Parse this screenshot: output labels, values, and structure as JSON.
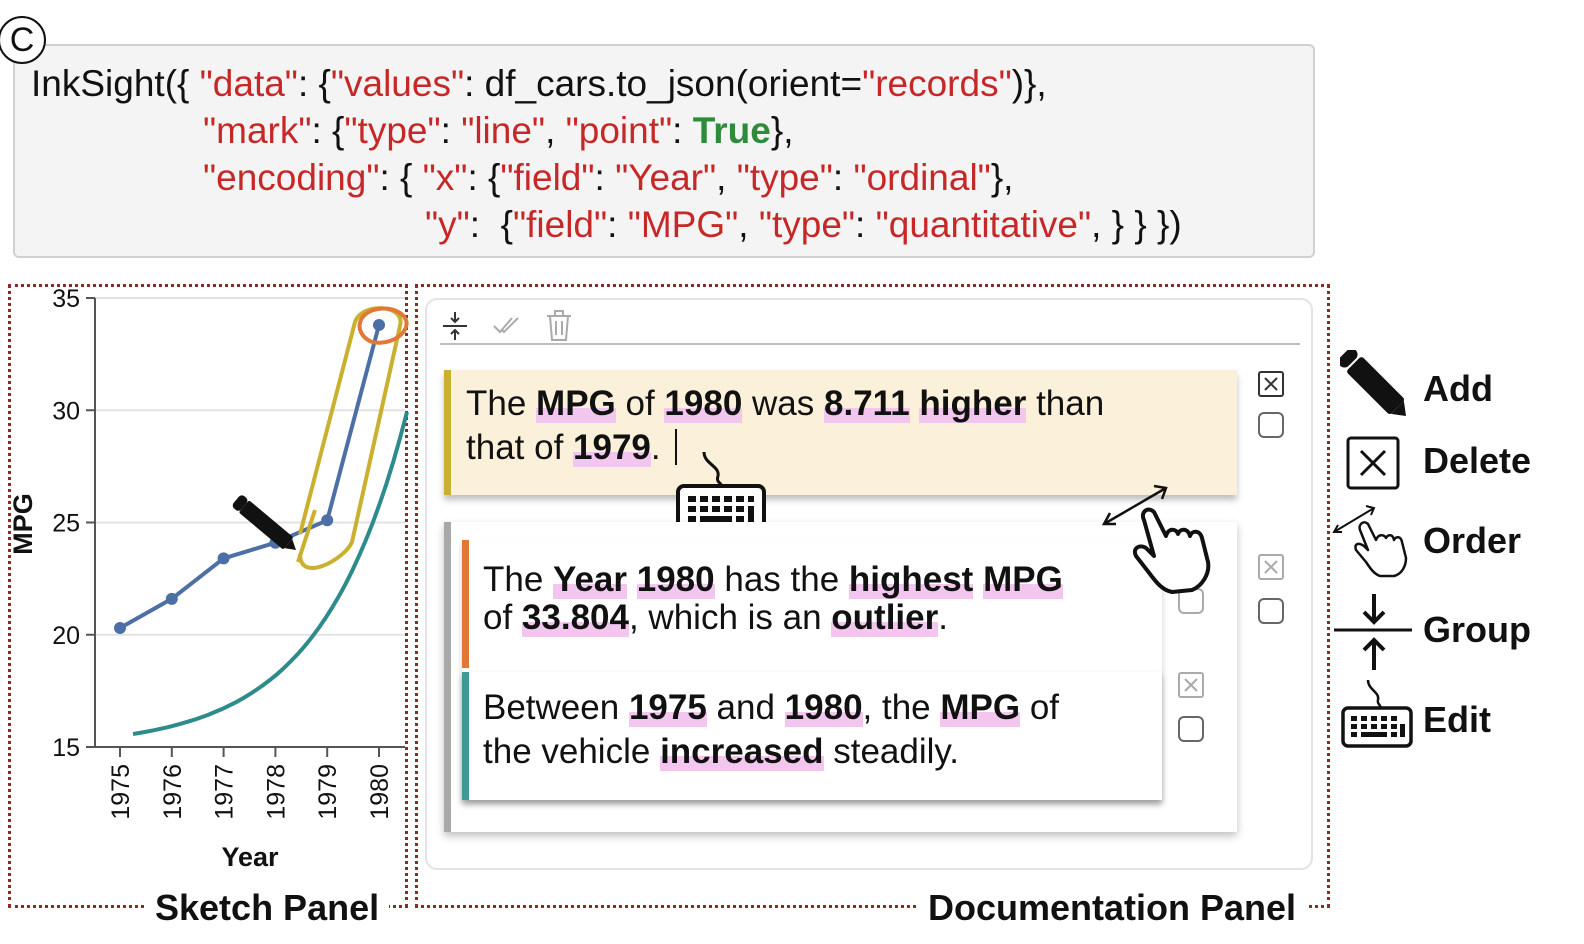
{
  "cell_label": "C",
  "code": {
    "line1": {
      "p1": "InkSight({ ",
      "k1": "\"data\"",
      "p2": ": {",
      "k2": "\"values\"",
      "p3": ": df_cars.to_json(orient=",
      "k3": "\"records\"",
      "p4": ")},"
    },
    "line2": {
      "k1": "\"mark\"",
      "p1": ": {",
      "k2": "\"type\"",
      "p2": ": ",
      "k3": "\"line\"",
      "p3": ", ",
      "k4": "\"point\"",
      "p4": ": ",
      "t1": "True",
      "p5": "},"
    },
    "line3": {
      "k1": "\"encoding\"",
      "p1": ": { ",
      "k2": "\"x\"",
      "p2": ": {",
      "k3": "\"field\"",
      "p3": ": ",
      "k4": "\"Year\"",
      "p4": ", ",
      "k5": "\"type\"",
      "p5": ": ",
      "k6": "\"ordinal\"",
      "p6": "},"
    },
    "line4": {
      "k1": "\"y\"",
      "p1": ":  {",
      "k2": "\"field\"",
      "p2": ": ",
      "k3": "\"MPG\"",
      "p3": ", ",
      "k4": "\"type\"",
      "p4": ": ",
      "k5": "\"quantitative\"",
      "p5": ", } } })"
    }
  },
  "sketch_panel": {
    "title": "Sketch Panel",
    "chart_data": {
      "type": "line",
      "categories": [
        "1975",
        "1976",
        "1977",
        "1978",
        "1979",
        "1980"
      ],
      "values": [
        20.3,
        21.6,
        23.4,
        24.1,
        25.1,
        33.8
      ],
      "xlabel": "Year",
      "ylabel": "MPG",
      "ylim": [
        15,
        35
      ],
      "yticks": [
        "15",
        "20",
        "25",
        "30",
        "35"
      ],
      "grid": true,
      "colors": {
        "line": "#4c6fa5",
        "trend": "#2e8b8b",
        "lasso": "#c9b02e",
        "circle": "#e07838"
      }
    }
  },
  "doc_panel": {
    "title": "Documentation Panel",
    "toolbar": {
      "group_icon": "group-icon",
      "check_icon": "double-check-icon",
      "trash_icon": "trash-icon"
    },
    "note1": {
      "s1": "The ",
      "b1": "MPG",
      "s2": " of ",
      "b2": "1980",
      "s3": " was ",
      "b3": "8.711",
      "s4": " ",
      "b4": "higher",
      "s5": " than",
      "s6": "that of ",
      "b5": "1979",
      "s7": "."
    },
    "note2": {
      "s1": "The ",
      "b1": "Year",
      "s2": " ",
      "b2": "1980",
      "s3": " has the ",
      "b3": "highest",
      "s4": " ",
      "b4": "MPG",
      "s5": "of ",
      "b5": "33.804",
      "s6": ", which is an ",
      "b6": "outlier",
      "s7": "."
    },
    "note3": {
      "s1": "Between ",
      "b1": "1975",
      "s2": " and ",
      "b2": "1980",
      "s3": ", the ",
      "b3": "MPG",
      "s4": " of",
      "s5": "the vehicle ",
      "b4": "increased",
      "s6": " steadily."
    }
  },
  "legend": {
    "add": "Add",
    "delete": "Delete",
    "order": "Order",
    "group": "Group",
    "edit": "Edit"
  }
}
